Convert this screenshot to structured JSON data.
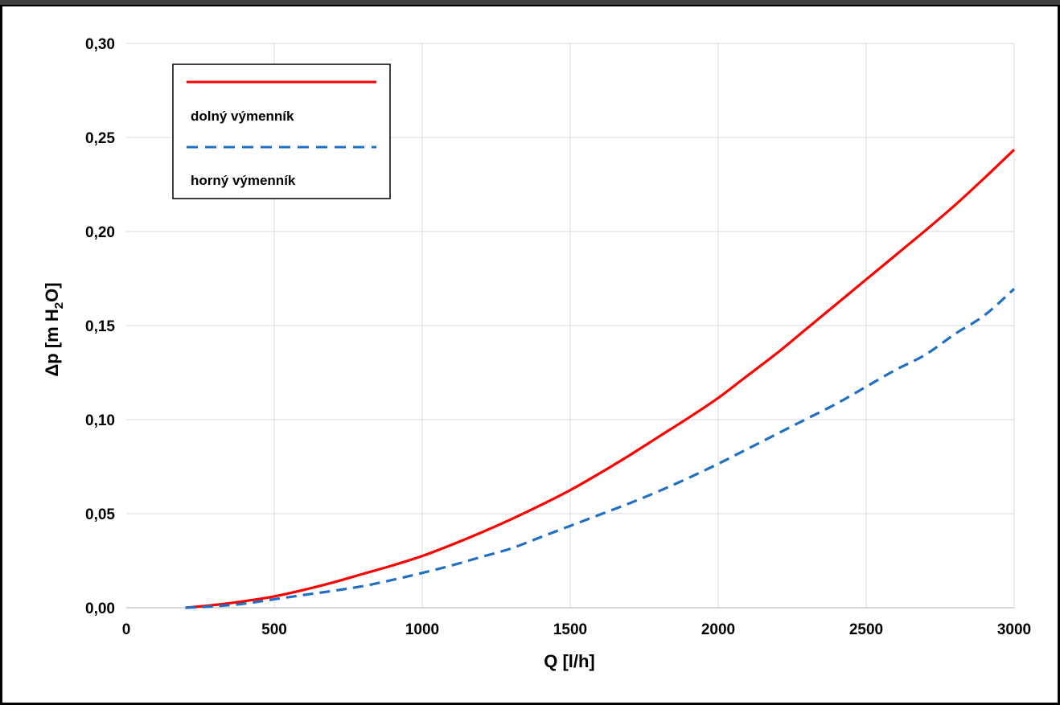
{
  "chart_data": {
    "type": "line",
    "title": "",
    "xlabel": "Q [l/h]",
    "ylabel": {
      "prefix": "Δp [m H",
      "sub": "2",
      "suffix": "O]"
    },
    "xlim": [
      0,
      3000
    ],
    "ylim": [
      0,
      0.3
    ],
    "xticks": [
      {
        "value": 0,
        "label": "0"
      },
      {
        "value": 500,
        "label": "500"
      },
      {
        "value": 1000,
        "label": "1000"
      },
      {
        "value": 1500,
        "label": "1500"
      },
      {
        "value": 2000,
        "label": "2000"
      },
      {
        "value": 2500,
        "label": "2500"
      },
      {
        "value": 3000,
        "label": "3000"
      }
    ],
    "yticks": [
      {
        "value": 0,
        "label": "0,00"
      },
      {
        "value": 0.05,
        "label": "0,05"
      },
      {
        "value": 0.1,
        "label": "0,10"
      },
      {
        "value": 0.15,
        "label": "0,15"
      },
      {
        "value": 0.2,
        "label": "0,20"
      },
      {
        "value": 0.25,
        "label": "0,25"
      },
      {
        "value": 0.3,
        "label": "0,30"
      }
    ],
    "grid": true,
    "legend_position": "top-left",
    "series": [
      {
        "name": "dolný výmenník",
        "color": "#ff0000",
        "style": "solid",
        "x": [
          200,
          300,
          400,
          500,
          600,
          700,
          800,
          900,
          1000,
          1100,
          1200,
          1300,
          1400,
          1500,
          1600,
          1700,
          1800,
          1900,
          2000,
          2100,
          2200,
          2300,
          2400,
          2500,
          2600,
          2700,
          2800,
          2900,
          3000
        ],
        "y": [
          0.0,
          0.0015,
          0.0035,
          0.006,
          0.0095,
          0.0135,
          0.018,
          0.0225,
          0.0275,
          0.0335,
          0.04,
          0.047,
          0.0545,
          0.0625,
          0.0715,
          0.081,
          0.091,
          0.101,
          0.1115,
          0.1235,
          0.1355,
          0.1485,
          0.1615,
          0.1745,
          0.1875,
          0.2005,
          0.214,
          0.2285,
          0.2435
        ]
      },
      {
        "name": "horný výmenník",
        "color": "#1f6fc5",
        "style": "dashed",
        "x": [
          200,
          300,
          400,
          500,
          600,
          700,
          800,
          900,
          1000,
          1100,
          1200,
          1300,
          1400,
          1500,
          1600,
          1700,
          1800,
          1900,
          2000,
          2100,
          2200,
          2300,
          2400,
          2500,
          2600,
          2700,
          2800,
          2900,
          3000
        ],
        "y": [
          0.0,
          0.0008,
          0.0022,
          0.0045,
          0.0068,
          0.009,
          0.0115,
          0.0148,
          0.0185,
          0.0225,
          0.027,
          0.0315,
          0.0375,
          0.0435,
          0.0495,
          0.0555,
          0.062,
          0.069,
          0.0765,
          0.0845,
          0.0925,
          0.1005,
          0.1085,
          0.1175,
          0.1265,
          0.1345,
          0.1455,
          0.1555,
          0.1695
        ]
      }
    ]
  }
}
